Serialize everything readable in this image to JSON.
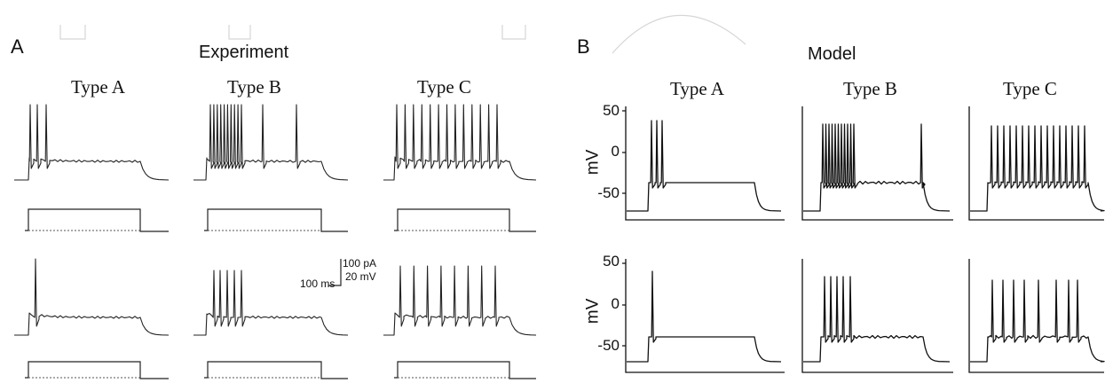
{
  "panel_a": {
    "letter": "A",
    "title": "Experiment",
    "types": [
      "Type A",
      "Type B",
      "Type C"
    ],
    "scale_bar": {
      "current": "100 pA",
      "voltage": "20 mV",
      "time": "100 ms"
    }
  },
  "panel_b": {
    "letter": "B",
    "title": "Model",
    "types": [
      "Type A",
      "Type B",
      "Type C"
    ],
    "y_axis": {
      "label": "mV",
      "ticks": [
        "50",
        "0",
        "-50"
      ]
    }
  },
  "trace_color": "#222222"
}
